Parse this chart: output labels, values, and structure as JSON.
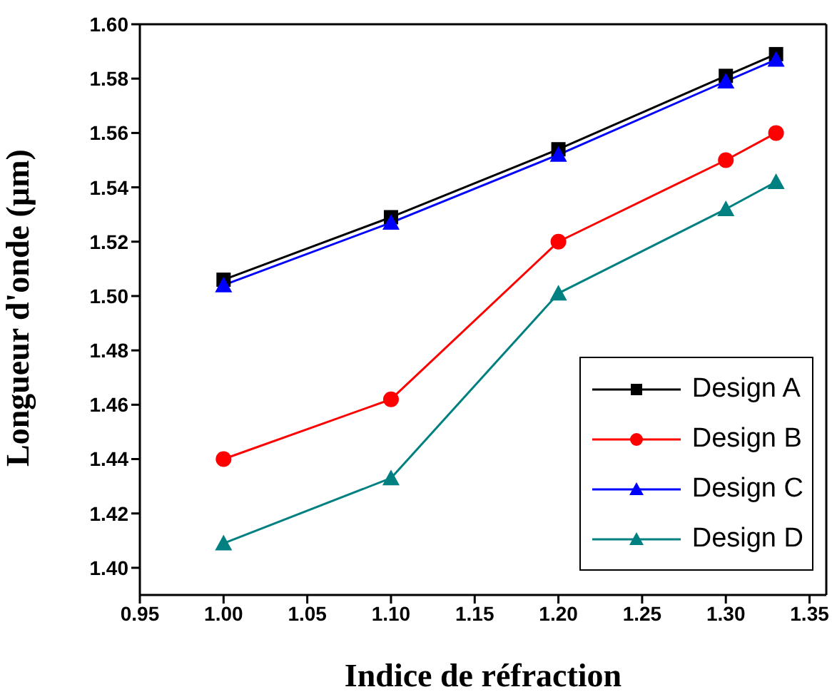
{
  "chart_data": {
    "type": "line",
    "xlabel": "Indice de réfraction",
    "ylabel": "Longueur d'onde (µm)",
    "x": [
      1.0,
      1.1,
      1.2,
      1.3,
      1.33
    ],
    "series": [
      {
        "name": "Design A",
        "color": "#000000",
        "marker": "square",
        "values": [
          1.506,
          1.529,
          1.554,
          1.581,
          1.589
        ]
      },
      {
        "name": "Design B",
        "color": "#ff0000",
        "marker": "circle",
        "values": [
          1.44,
          1.462,
          1.52,
          1.55,
          1.56
        ]
      },
      {
        "name": "Design C",
        "color": "#0000ff",
        "marker": "triangle",
        "values": [
          1.504,
          1.527,
          1.552,
          1.579,
          1.587
        ]
      },
      {
        "name": "Design D",
        "color": "#008080",
        "marker": "triangle",
        "values": [
          1.409,
          1.433,
          1.501,
          1.532,
          1.542
        ]
      }
    ],
    "xlim": [
      0.95,
      1.36
    ],
    "xticks": [
      {
        "value": 0.95,
        "label": "0.95"
      },
      {
        "value": 1.0,
        "label": "1.00"
      },
      {
        "value": 1.05,
        "label": "1.05"
      },
      {
        "value": 1.1,
        "label": "1.10"
      },
      {
        "value": 1.15,
        "label": "1.15"
      },
      {
        "value": 1.2,
        "label": "1.20"
      },
      {
        "value": 1.25,
        "label": "1.25"
      },
      {
        "value": 1.3,
        "label": "1.30"
      },
      {
        "value": 1.35,
        "label": "1.35"
      }
    ],
    "ylim": [
      1.39,
      1.6
    ],
    "yticks": [
      {
        "value": 1.4,
        "label": "1.40"
      },
      {
        "value": 1.42,
        "label": "1.42"
      },
      {
        "value": 1.44,
        "label": "1.44"
      },
      {
        "value": 1.46,
        "label": "1.46"
      },
      {
        "value": 1.48,
        "label": "1.48"
      },
      {
        "value": 1.5,
        "label": "1.50"
      },
      {
        "value": 1.52,
        "label": "1.52"
      },
      {
        "value": 1.54,
        "label": "1.54"
      },
      {
        "value": 1.56,
        "label": "1.56"
      },
      {
        "value": 1.58,
        "label": "1.58"
      },
      {
        "value": 1.6,
        "label": "1.60"
      }
    ],
    "grid": false,
    "legend": "bottom right"
  }
}
